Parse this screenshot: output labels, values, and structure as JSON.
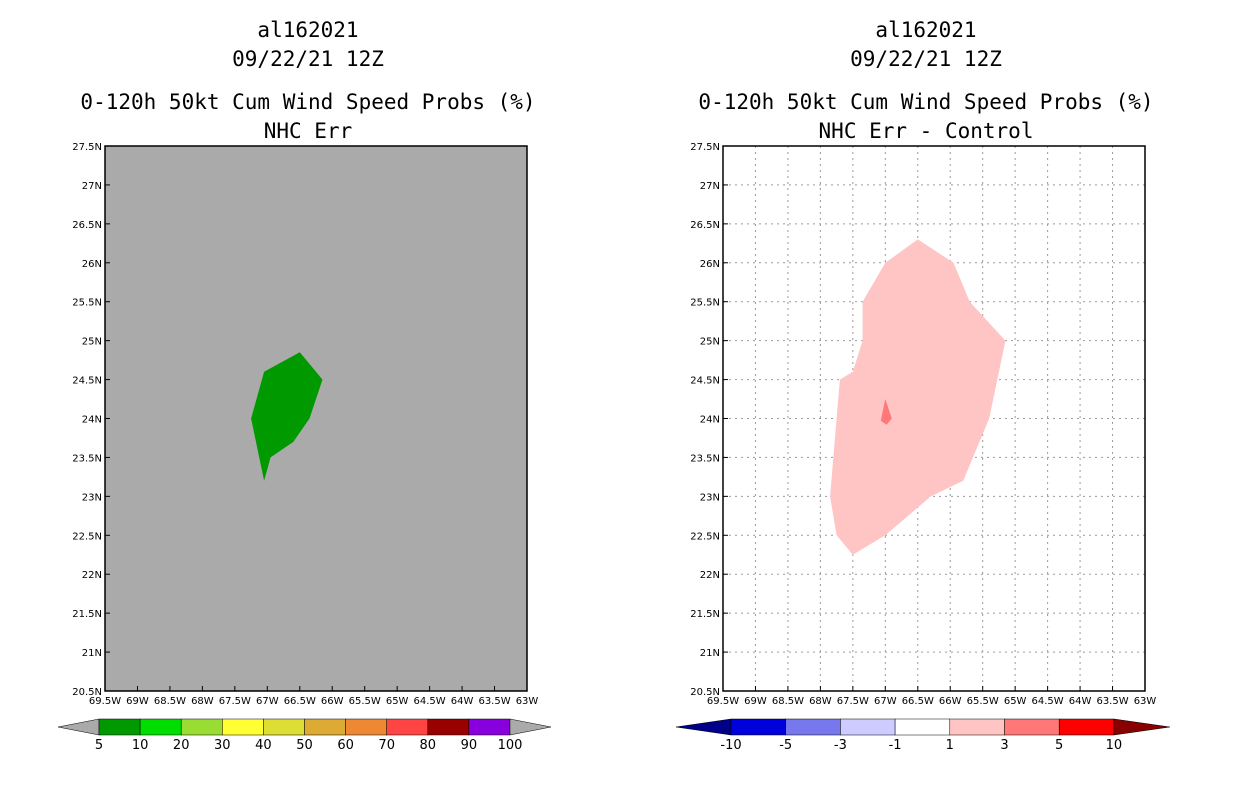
{
  "left": {
    "titles": [
      "al162021",
      "09/22/21 12Z",
      "0-120h 50kt Cum Wind Speed Probs (%)",
      "NHC Err"
    ],
    "background_color": "#aaaaaa",
    "colorbar": {
      "colors": [
        "#009900",
        "#00dd00",
        "#99dd33",
        "#ffff33",
        "#dddd33",
        "#ddaa33",
        "#ee8833",
        "#ff4444",
        "#990000",
        "#8800dd"
      ],
      "end_color": "#aaaaaa",
      "labels": [
        "5",
        "10",
        "20",
        "30",
        "40",
        "50",
        "60",
        "70",
        "80",
        "90",
        "100"
      ]
    },
    "regions": [
      {
        "name": "prob-5-10-region",
        "color": "#009900",
        "polygon": [
          [
            -67.05,
            24.6
          ],
          [
            -66.5,
            24.85
          ],
          [
            -66.15,
            24.5
          ],
          [
            -66.35,
            24.0
          ],
          [
            -66.6,
            23.7
          ],
          [
            -66.95,
            23.5
          ],
          [
            -67.05,
            23.2
          ],
          [
            -67.25,
            24.0
          ]
        ]
      }
    ]
  },
  "right": {
    "titles": [
      "al162021",
      "09/22/21 12Z",
      "0-120h 50kt Cum Wind Speed Probs (%)",
      "NHC Err - Control"
    ],
    "background_color": "#ffffff",
    "colorbar": {
      "colors": [
        "#0000dd",
        "#7777ee",
        "#ccccff",
        "#ffffff",
        "#ffc4c4",
        "#ff7777",
        "#ff0000"
      ],
      "left_end_color": "#000088",
      "right_end_color": "#880000",
      "labels": [
        "-10",
        "-5",
        "-3",
        "-1",
        "1",
        "3",
        "5",
        "10"
      ]
    },
    "regions": [
      {
        "name": "diff-1-3-region",
        "color": "#ffc4c4",
        "polygon": [
          [
            -67.0,
            26.0
          ],
          [
            -66.5,
            26.3
          ],
          [
            -65.95,
            26.0
          ],
          [
            -65.7,
            25.5
          ],
          [
            -65.15,
            25.0
          ],
          [
            -65.4,
            24.0
          ],
          [
            -65.8,
            23.2
          ],
          [
            -66.3,
            23.0
          ],
          [
            -67.0,
            22.5
          ],
          [
            -67.5,
            22.25
          ],
          [
            -67.75,
            22.5
          ],
          [
            -67.85,
            23.0
          ],
          [
            -67.75,
            24.0
          ],
          [
            -67.7,
            24.5
          ],
          [
            -67.5,
            24.6
          ],
          [
            -67.35,
            25.0
          ],
          [
            -67.35,
            25.5
          ]
        ]
      },
      {
        "name": "diff-3-5-region",
        "color": "#ff7777",
        "polygon": [
          [
            -67.0,
            24.25
          ],
          [
            -66.9,
            24.0
          ],
          [
            -66.98,
            23.92
          ],
          [
            -67.07,
            23.97
          ]
        ]
      }
    ]
  },
  "axes": {
    "lon_range": [
      -69.5,
      -63.0
    ],
    "lat_range": [
      20.5,
      27.5
    ],
    "lon_ticks": [
      -69.5,
      -69.0,
      -68.5,
      -68.0,
      -67.5,
      -67.0,
      -66.5,
      -66.0,
      -65.5,
      -65.0,
      -64.5,
      -64.0,
      -63.5,
      -63.0
    ],
    "lat_ticks": [
      20.5,
      21.0,
      21.5,
      22.0,
      22.5,
      23.0,
      23.5,
      24.0,
      24.5,
      25.0,
      25.5,
      26.0,
      26.5,
      27.0,
      27.5
    ],
    "lon_labels": [
      "69.5W",
      "69W",
      "68.5W",
      "68W",
      "67.5W",
      "67W",
      "66.5W",
      "66W",
      "65.5W",
      "65W",
      "64.5W",
      "64W",
      "63.5W",
      "63W"
    ],
    "lat_labels": [
      "20.5N",
      "21N",
      "21.5N",
      "22N",
      "22.5N",
      "23N",
      "23.5N",
      "24N",
      "24.5N",
      "25N",
      "25.5N",
      "26N",
      "26.5N",
      "27N",
      "27.5N"
    ]
  }
}
